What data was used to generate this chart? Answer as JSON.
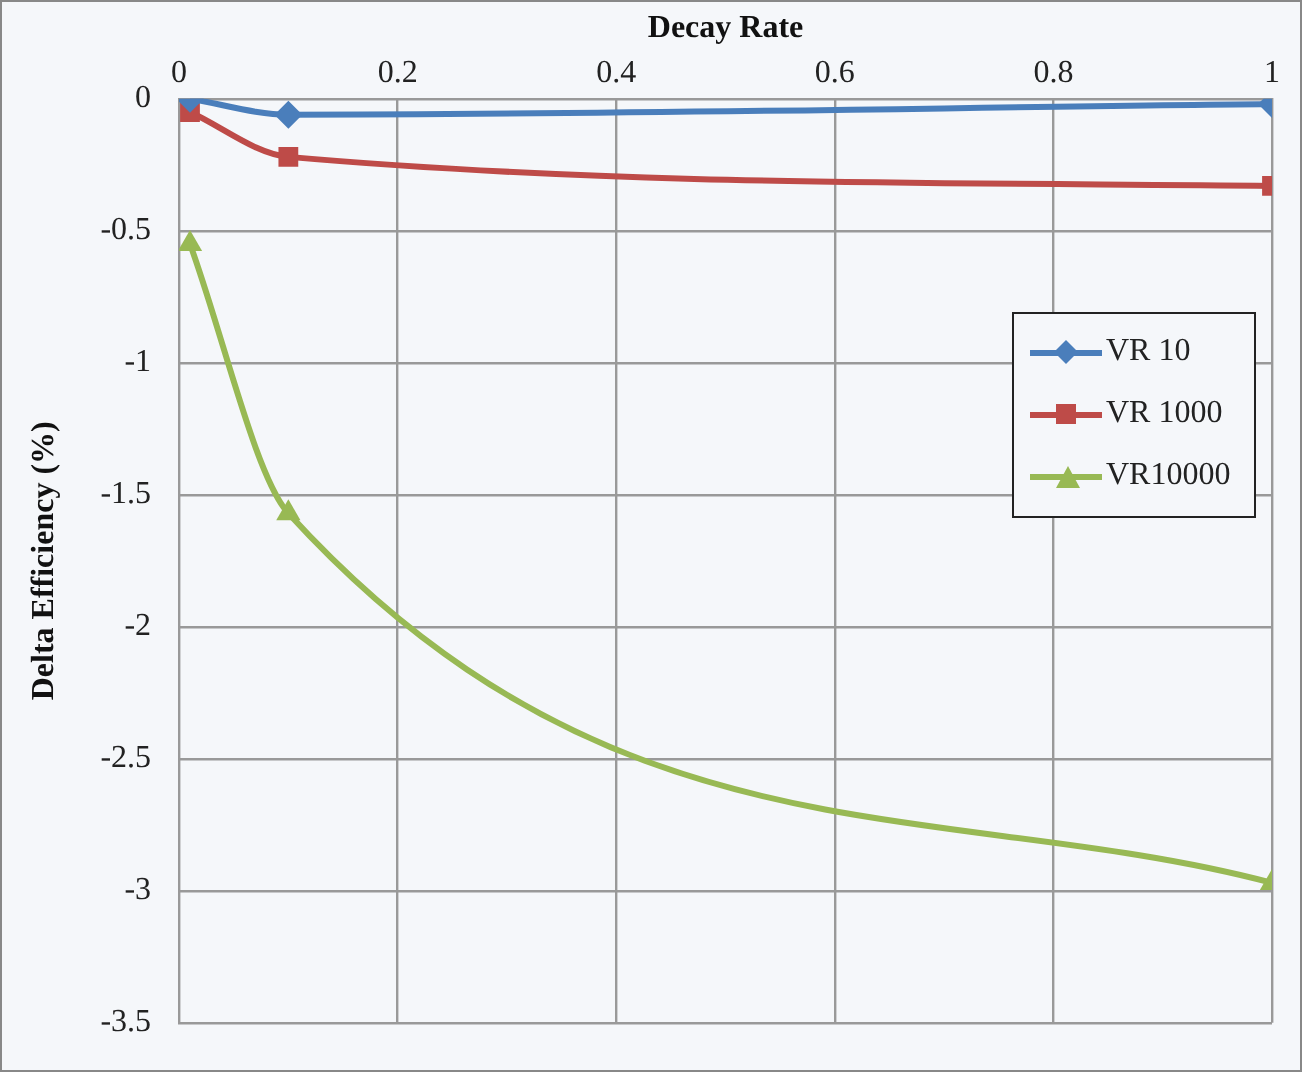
{
  "chart_data": {
    "type": "line",
    "xlabel": "Decay Rate",
    "ylabel": "Delta Efficiency (%)",
    "x": [
      0.01,
      0.1,
      1
    ],
    "series": [
      {
        "name": "VR 10",
        "color": "#4a7ebb",
        "values": [
          0,
          -0.06,
          -0.02
        ],
        "marker": "diamond"
      },
      {
        "name": "VR 1000",
        "color": "#be4b48",
        "values": [
          -0.05,
          -0.22,
          -0.33
        ],
        "marker": "square"
      },
      {
        "name": "VR10000",
        "color": "#98b954",
        "values": [
          -0.55,
          -1.57,
          -2.97
        ],
        "marker": "triangle"
      }
    ],
    "xlim": [
      0,
      1
    ],
    "xticks": [
      0,
      0.2,
      0.4,
      0.6,
      0.8,
      1
    ],
    "ylim": [
      -3.5,
      0
    ],
    "yticks": [
      0,
      -0.5,
      -1,
      -1.5,
      -2,
      -2.5,
      -3,
      -3.5
    ],
    "grid": true,
    "legend": "right",
    "line_style": "solid"
  }
}
